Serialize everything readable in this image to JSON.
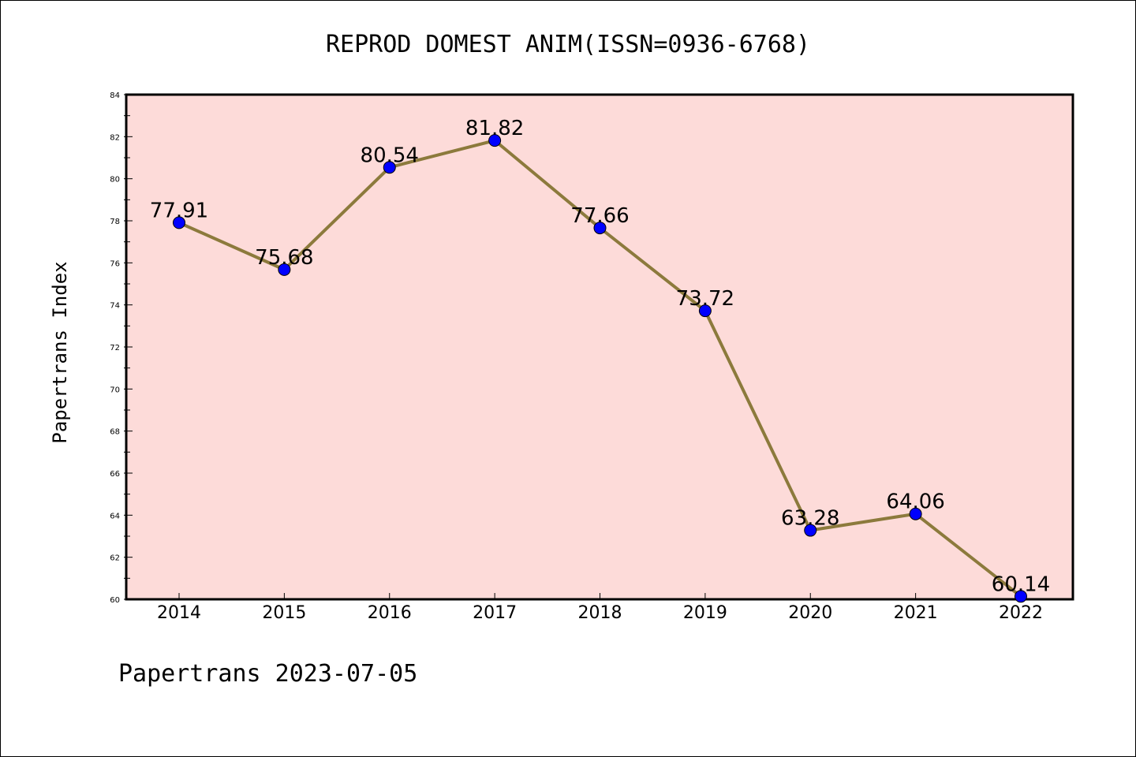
{
  "chart_data": {
    "type": "line",
    "title": "REPROD DOMEST ANIM(ISSN=0936-6768)",
    "xlabel": "",
    "ylabel": "Papertrans Index",
    "categories": [
      "2014",
      "2015",
      "2016",
      "2017",
      "2018",
      "2019",
      "2020",
      "2021",
      "2022"
    ],
    "series": [
      {
        "values": [
          77.91,
          75.68,
          80.54,
          81.82,
          77.66,
          73.72,
          63.28,
          64.06,
          60.14
        ]
      }
    ],
    "data_labels": [
      "77.91",
      "75.68",
      "80.54",
      "81.82",
      "77.66",
      "73.72",
      "63.28",
      "64.06",
      "60.14"
    ],
    "ylim": [
      60,
      84
    ],
    "yticks": [
      "60",
      "62",
      "64",
      "66",
      "68",
      "70",
      "72",
      "74",
      "76",
      "78",
      "80",
      "82",
      "84"
    ],
    "grid": false,
    "legend": "none",
    "colors": {
      "plot_background": "#FDDBD9",
      "line": "#8C7A3C",
      "marker": "#0000FF",
      "axis": "#000000"
    }
  },
  "footer": "Papertrans 2023-07-05"
}
